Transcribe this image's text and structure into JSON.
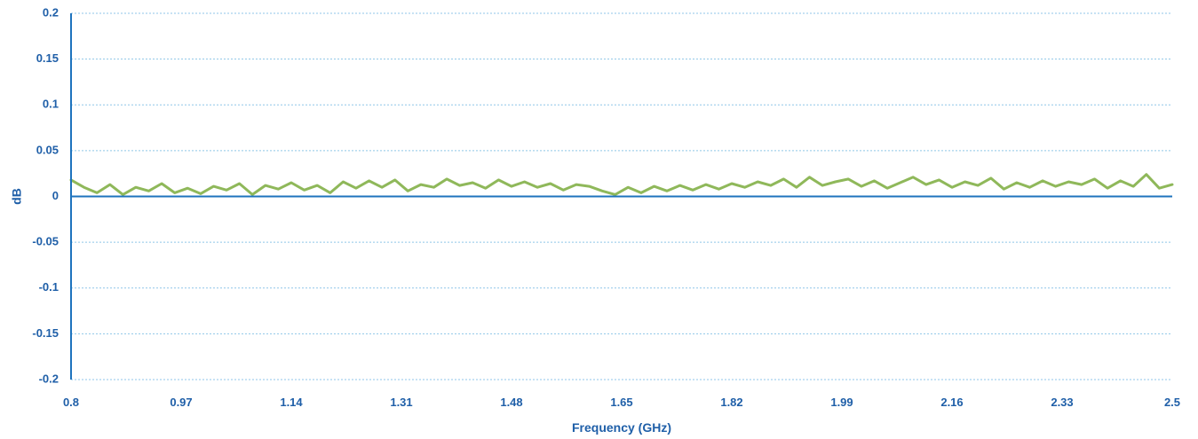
{
  "chart_data": {
    "type": "line",
    "title": "",
    "xlabel": "Frequency (GHz)",
    "ylabel": "dB",
    "xlim": [
      0.8,
      2.5
    ],
    "ylim": [
      -0.2,
      0.2
    ],
    "x_ticks": [
      "0.8",
      "0.97",
      "1.14",
      "1.31",
      "1.48",
      "1.65",
      "1.82",
      "1.99",
      "2.16",
      "2.33",
      "2.5"
    ],
    "y_ticks": [
      "0.2",
      "0.15",
      "0.1",
      "0.05",
      "0",
      "-0.05",
      "-0.1",
      "-0.15",
      "-0.2"
    ],
    "grid": true,
    "legend": "none",
    "colors": {
      "axis": "#1e73be",
      "grid": "#8fc6e8",
      "text": "#1f5fa8",
      "series": "#8fb85a"
    },
    "series": [
      {
        "color": "#8fb85a",
        "x": [
          0.8,
          0.82,
          0.84,
          0.86,
          0.88,
          0.9,
          0.92,
          0.94,
          0.96,
          0.98,
          1.0,
          1.02,
          1.04,
          1.06,
          1.08,
          1.1,
          1.12,
          1.14,
          1.16,
          1.18,
          1.2,
          1.22,
          1.24,
          1.26,
          1.28,
          1.3,
          1.32,
          1.34,
          1.36,
          1.38,
          1.4,
          1.42,
          1.44,
          1.46,
          1.48,
          1.5,
          1.52,
          1.54,
          1.56,
          1.58,
          1.6,
          1.62,
          1.64,
          1.66,
          1.68,
          1.7,
          1.72,
          1.74,
          1.76,
          1.78,
          1.8,
          1.82,
          1.84,
          1.86,
          1.88,
          1.9,
          1.92,
          1.94,
          1.96,
          1.98,
          2.0,
          2.02,
          2.04,
          2.06,
          2.08,
          2.1,
          2.12,
          2.14,
          2.16,
          2.18,
          2.2,
          2.22,
          2.24,
          2.26,
          2.28,
          2.3,
          2.32,
          2.34,
          2.36,
          2.38,
          2.4,
          2.42,
          2.44,
          2.46,
          2.48,
          2.5
        ],
        "values": [
          0.018,
          0.01,
          0.004,
          0.013,
          0.002,
          0.01,
          0.006,
          0.014,
          0.004,
          0.009,
          0.003,
          0.011,
          0.007,
          0.014,
          0.002,
          0.012,
          0.008,
          0.015,
          0.007,
          0.012,
          0.004,
          0.016,
          0.009,
          0.017,
          0.01,
          0.018,
          0.006,
          0.013,
          0.01,
          0.019,
          0.012,
          0.015,
          0.009,
          0.018,
          0.011,
          0.016,
          0.01,
          0.014,
          0.007,
          0.013,
          0.011,
          0.006,
          0.002,
          0.01,
          0.004,
          0.011,
          0.006,
          0.012,
          0.007,
          0.013,
          0.008,
          0.014,
          0.01,
          0.016,
          0.012,
          0.019,
          0.01,
          0.021,
          0.012,
          0.016,
          0.019,
          0.011,
          0.017,
          0.009,
          0.015,
          0.021,
          0.013,
          0.018,
          0.01,
          0.016,
          0.012,
          0.02,
          0.008,
          0.015,
          0.01,
          0.017,
          0.011,
          0.016,
          0.013,
          0.019,
          0.009,
          0.017,
          0.011,
          0.024,
          0.009,
          0.013
        ]
      }
    ]
  }
}
